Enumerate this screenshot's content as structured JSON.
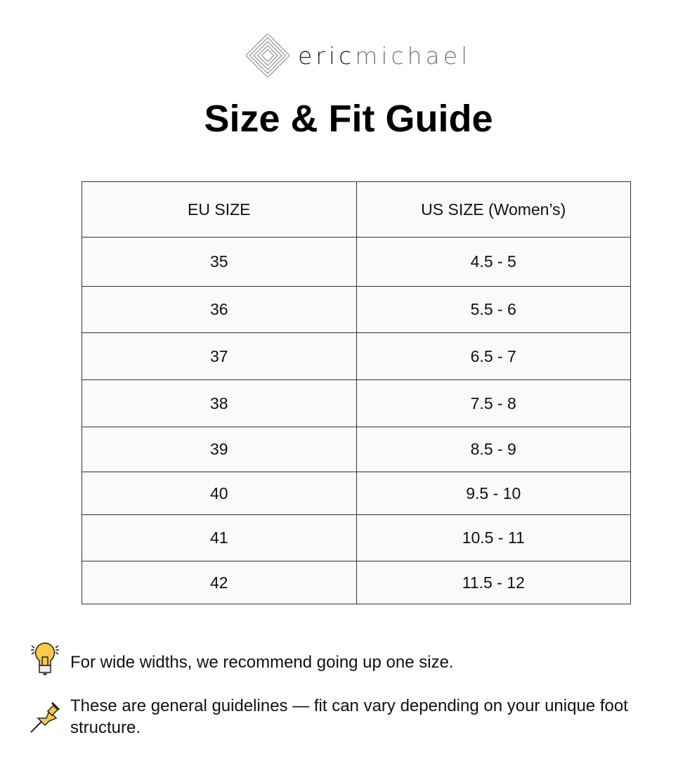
{
  "brand": {
    "part1": "eric",
    "part2": "michael"
  },
  "title": "Size & Fit Guide",
  "table": {
    "headers": [
      "EU SIZE",
      "US SIZE (Women’s)"
    ],
    "rows": [
      [
        "35",
        "4.5 - 5"
      ],
      [
        "36",
        "5.5 - 6"
      ],
      [
        "37",
        "6.5 - 7"
      ],
      [
        "38",
        "7.5 - 8"
      ],
      [
        "39",
        "8.5 - 9"
      ],
      [
        "40",
        "9.5 - 10"
      ],
      [
        "41",
        "10.5 - 11"
      ],
      [
        "42",
        "11.5 - 12"
      ]
    ]
  },
  "notes": [
    {
      "icon": "lightbulb-icon",
      "text": "For wide widths, we recommend going up one size."
    },
    {
      "icon": "pushpin-icon",
      "text": "These are general guidelines — fit can vary depending on your unique foot structure."
    }
  ]
}
